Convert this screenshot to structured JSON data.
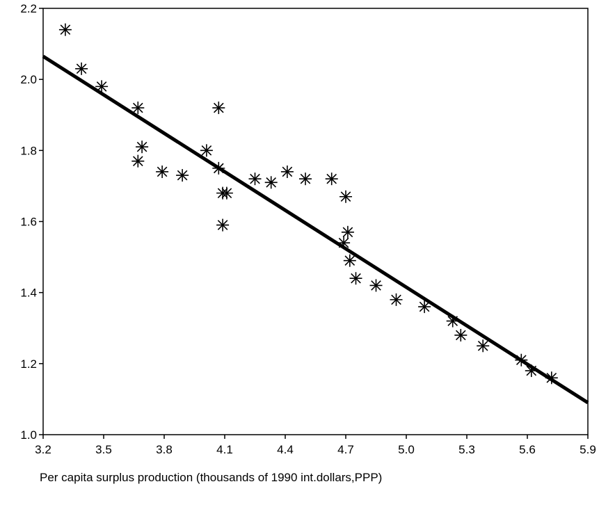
{
  "chart_data": {
    "type": "scatter",
    "title": "",
    "xlabel": "Per capita surplus production (thousands of 1990 int.dollars,PPP)",
    "ylabel": "",
    "xlim": [
      3.2,
      5.9
    ],
    "ylim": [
      1.0,
      2.2
    ],
    "xticks": [
      "3.2",
      "3.5",
      "3.8",
      "4.1",
      "4.4",
      "4.7",
      "5.0",
      "5.3",
      "5.6",
      "5.9"
    ],
    "yticks": [
      "1.0",
      "1.2",
      "1.4",
      "1.6",
      "1.8",
      "2.0",
      "2.2"
    ],
    "grid": false,
    "marker": "asterisk",
    "points": [
      {
        "x": 3.31,
        "y": 2.14
      },
      {
        "x": 3.39,
        "y": 2.03
      },
      {
        "x": 3.49,
        "y": 1.98
      },
      {
        "x": 3.67,
        "y": 1.92
      },
      {
        "x": 3.69,
        "y": 1.81
      },
      {
        "x": 3.67,
        "y": 1.77
      },
      {
        "x": 3.79,
        "y": 1.74
      },
      {
        "x": 3.89,
        "y": 1.73
      },
      {
        "x": 4.01,
        "y": 1.8
      },
      {
        "x": 4.07,
        "y": 1.92
      },
      {
        "x": 4.07,
        "y": 1.75
      },
      {
        "x": 4.09,
        "y": 1.68
      },
      {
        "x": 4.11,
        "y": 1.68
      },
      {
        "x": 4.09,
        "y": 1.59
      },
      {
        "x": 4.25,
        "y": 1.72
      },
      {
        "x": 4.33,
        "y": 1.71
      },
      {
        "x": 4.41,
        "y": 1.74
      },
      {
        "x": 4.5,
        "y": 1.72
      },
      {
        "x": 4.63,
        "y": 1.72
      },
      {
        "x": 4.7,
        "y": 1.67
      },
      {
        "x": 4.71,
        "y": 1.57
      },
      {
        "x": 4.69,
        "y": 1.54
      },
      {
        "x": 4.72,
        "y": 1.49
      },
      {
        "x": 4.75,
        "y": 1.44
      },
      {
        "x": 4.85,
        "y": 1.42
      },
      {
        "x": 4.95,
        "y": 1.38
      },
      {
        "x": 5.09,
        "y": 1.36
      },
      {
        "x": 5.23,
        "y": 1.32
      },
      {
        "x": 5.27,
        "y": 1.28
      },
      {
        "x": 5.38,
        "y": 1.25
      },
      {
        "x": 5.57,
        "y": 1.21
      },
      {
        "x": 5.62,
        "y": 1.18
      },
      {
        "x": 5.72,
        "y": 1.16
      }
    ],
    "fit_line": {
      "x": [
        3.2,
        5.9
      ],
      "y": [
        2.065,
        1.09
      ]
    },
    "colors": {
      "marker": "#000000",
      "line": "#000000",
      "axis": "#000000"
    }
  }
}
